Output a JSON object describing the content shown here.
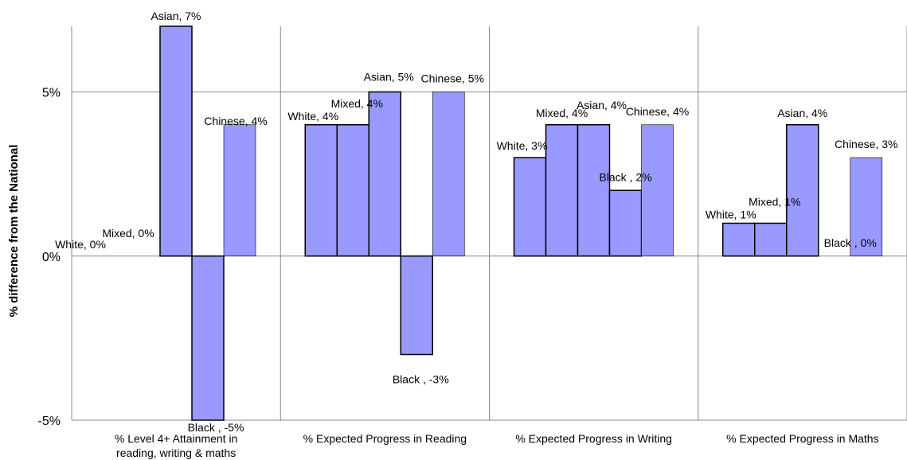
{
  "chart_data": {
    "type": "bar",
    "title": "",
    "xlabel": "",
    "ylabel": "% difference from the National",
    "ylim": [
      -5,
      7
    ],
    "yticks": [
      {
        "value": 5,
        "label": "5%"
      },
      {
        "value": 0,
        "label": "0%"
      },
      {
        "value": -5,
        "label": "-5%"
      }
    ],
    "grid": true,
    "bar_color": "#9999ff",
    "bar_edge_color": "#000000",
    "groups": [
      {
        "category": [
          "% Level 4+ Attainment in",
          "reading, writing & maths"
        ],
        "bars": [
          {
            "series": "White",
            "value": 0,
            "label": "White, 0%"
          },
          {
            "series": "Mixed",
            "value": 0,
            "label": "Mixed,  0%"
          },
          {
            "series": "Asian",
            "value": 7,
            "label": "Asian, 7%"
          },
          {
            "series": "Black",
            "value": -5,
            "label": "Black , -5%"
          },
          {
            "series": "Chinese",
            "value": 4,
            "label": "Chinese, 4%"
          }
        ]
      },
      {
        "category": [
          "% Expected Progress in Reading"
        ],
        "bars": [
          {
            "series": "White",
            "value": 4,
            "label": "White, 4%"
          },
          {
            "series": "Mixed",
            "value": 4,
            "label": "Mixed,  4%"
          },
          {
            "series": "Asian",
            "value": 5,
            "label": "Asian, 5%"
          },
          {
            "series": "Black",
            "value": -3,
            "label": "Black , -3%"
          },
          {
            "series": "Chinese",
            "value": 5,
            "label": "Chinese, 5%"
          }
        ]
      },
      {
        "category": [
          "% Expected Progress in Writing"
        ],
        "bars": [
          {
            "series": "White",
            "value": 3,
            "label": "White, 3%"
          },
          {
            "series": "Mixed",
            "value": 4,
            "label": "Mixed,  4%"
          },
          {
            "series": "Asian",
            "value": 4,
            "label": "Asian, 4%"
          },
          {
            "series": "Black",
            "value": 2,
            "label": "Black , 2%"
          },
          {
            "series": "Chinese",
            "value": 4,
            "label": "Chinese, 4%"
          }
        ]
      },
      {
        "category": [
          "% Expected Progress in Maths"
        ],
        "bars": [
          {
            "series": "White",
            "value": 1,
            "label": "White, 1%"
          },
          {
            "series": "Mixed",
            "value": 1,
            "label": "Mixed,  1%"
          },
          {
            "series": "Asian",
            "value": 4,
            "label": "Asian, 4%"
          },
          {
            "series": "Black",
            "value": 0,
            "label": "Black , 0%"
          },
          {
            "series": "Chinese",
            "value": 3,
            "label": "Chinese, 3%"
          }
        ]
      }
    ]
  }
}
